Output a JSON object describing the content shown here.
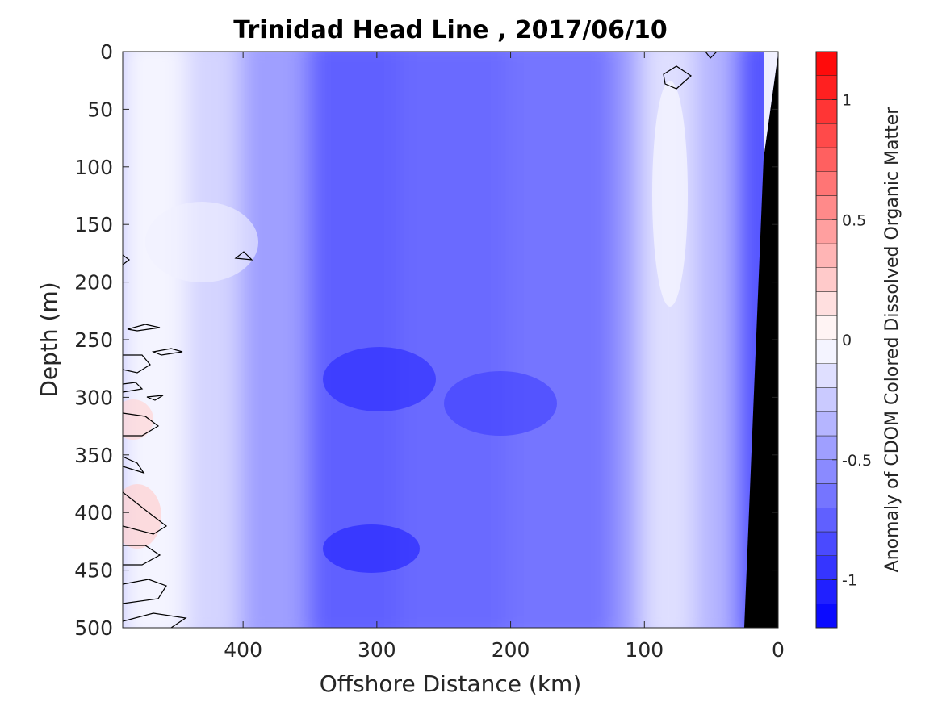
{
  "chart_data": {
    "type": "heatmap",
    "subtype": "filled-contour",
    "title": "Trinidad Head Line , 2017/06/10",
    "xlabel": "Offshore Distance (km)",
    "ylabel": "Depth (m)",
    "xlim": [
      490,
      0
    ],
    "x_reversed": true,
    "ylim": [
      0,
      500
    ],
    "y_reversed": true,
    "x_ticks": [
      400,
      300,
      200,
      100,
      0
    ],
    "x_tick_labels": [
      "400",
      "300",
      "200",
      "100",
      "0"
    ],
    "y_ticks": [
      0,
      50,
      100,
      150,
      200,
      250,
      300,
      350,
      400,
      450,
      500
    ],
    "y_tick_labels": [
      "0",
      "50",
      "100",
      "150",
      "200",
      "250",
      "300",
      "350",
      "400",
      "450",
      "500"
    ],
    "colorbar": {
      "label": "Anomaly of CDOM Colored Dissolved Organic Matter",
      "range": [
        -1.2,
        1.2
      ],
      "level_step": 0.1,
      "ticks": [
        1,
        0.5,
        0,
        -0.5,
        -1
      ],
      "tick_labels": [
        "1",
        "0.5",
        "0",
        "-0.5",
        "-1"
      ],
      "colormap": "blue-white-red",
      "low_color": "#0000ff",
      "mid_color": "#ffffff",
      "high_color": "#ff0000"
    },
    "depth_bands_km": [
      {
        "x_from": 490,
        "x_to": 440,
        "anomaly": -0.05
      },
      {
        "x_from": 440,
        "x_to": 400,
        "anomaly": -0.2
      },
      {
        "x_from": 400,
        "x_to": 350,
        "anomaly": -0.45
      },
      {
        "x_from": 350,
        "x_to": 280,
        "anomaly": -0.75
      },
      {
        "x_from": 280,
        "x_to": 200,
        "anomaly": -0.7
      },
      {
        "x_from": 200,
        "x_to": 120,
        "anomaly": -0.65
      },
      {
        "x_from": 120,
        "x_to": 100,
        "anomaly": -0.45
      },
      {
        "x_from": 100,
        "x_to": 60,
        "anomaly": -0.15
      },
      {
        "x_from": 60,
        "x_to": 30,
        "anomaly": -0.35
      },
      {
        "x_from": 30,
        "x_to": 0,
        "anomaly": -0.8
      }
    ],
    "notes": "Zero-anomaly contour lines appear near the western edge (x>440 km) at depths 230-490 m and near x≈90 km at 10-30 m depth; bathymetry (black) fills the nearshore bottom from ~25 km to 0 km.",
    "bathymetry_color": "#000000"
  }
}
